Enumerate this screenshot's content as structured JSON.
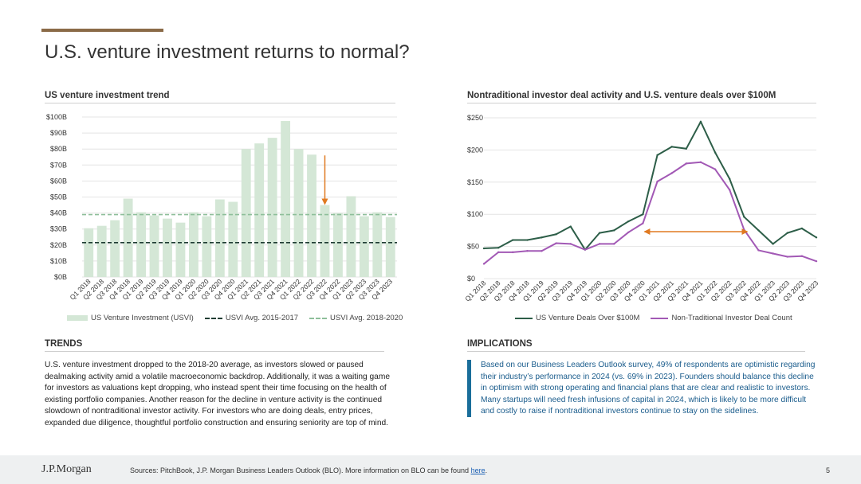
{
  "title": "U.S. venture investment returns to normal?",
  "left_chart_title": "US venture investment trend",
  "right_chart_title": "Nontraditional investor deal activity and U.S. venture deals over $100M",
  "trends_heading": "TRENDS",
  "trends_text": "U.S. venture investment dropped to the 2018-20 average, as investors slowed or paused dealmaking activity amid a volatile macroeconomic backdrop. Additionally, it was a waiting game for investors as valuations kept dropping, who instead spent their time focusing on the health of existing portfolio companies. Another reason for the decline in venture activity is the continued slowdown of nontraditional investor activity. For investors who are doing deals, entry prices, expanded due diligence, thoughtful portfolio construction and ensuring seniority are top of mind.",
  "implications_heading": "IMPLICATIONS",
  "implications_text": "Based on our Business Leaders Outlook survey, 49% of respondents are optimistic regarding their industry’s performance in 2024 (vs. 69% in 2023). Founders should balance this decline in optimism with strong operating and financial plans that are clear and realistic to investors. Many startups will need fresh infusions of capital in 2024, which is likely to be more difficult and costly to raise if nontraditional investors continue to stay on the sidelines.",
  "footer": {
    "logo": "J.P.Morgan",
    "sources": "Sources: PitchBook, J.P. Morgan Business Leaders Outlook (BLO). More information on BLO can be found ",
    "link": "here",
    "link_suffix": ".",
    "page_number": "5"
  },
  "chart_data": [
    {
      "type": "bar",
      "title": "US venture investment trend",
      "categories": [
        "Q1 2018",
        "Q2 2018",
        "Q3 2018",
        "Q4 2018",
        "Q1 2019",
        "Q2 2019",
        "Q3 2019",
        "Q4 2019",
        "Q1 2020",
        "Q2 2020",
        "Q3 2020",
        "Q4 2020",
        "Q1 2021",
        "Q2 2021",
        "Q3 2021",
        "Q4 2021",
        "Q1 2022",
        "Q2 2022",
        "Q3 2022",
        "Q4 2022",
        "Q1 2023",
        "Q2 2023",
        "Q3 2023",
        "Q4 2023"
      ],
      "series": [
        {
          "name": "US Venture Investment (USVI)",
          "values": [
            30.5,
            32,
            35.5,
            49,
            40.5,
            38.5,
            36.5,
            34,
            40.5,
            38,
            48.5,
            47,
            80,
            83.5,
            87,
            97.5,
            80,
            76.5,
            45,
            40,
            50.5,
            38,
            40.5,
            37.5
          ],
          "color": "#d4e7d6"
        }
      ],
      "reference_lines": [
        {
          "name": "USVI Avg. 2015-2017",
          "value": 21.5,
          "color": "#1f3d33",
          "style": "dashed"
        },
        {
          "name": "USVI Avg. 2018-2020",
          "value": 39,
          "color": "#8ebf9a",
          "style": "dashed"
        }
      ],
      "ylim": [
        0,
        100
      ],
      "yticks": [
        "$0B",
        "$10B",
        "$20B",
        "$30B",
        "$40B",
        "$50B",
        "$60B",
        "$70B",
        "$80B",
        "$90B",
        "$100B"
      ],
      "annotation": {
        "type": "arrow-down",
        "category": "Q3 2022",
        "from": 76,
        "to": 45,
        "color": "#e07a21"
      },
      "legend_position": "bottom"
    },
    {
      "type": "line",
      "title": "Nontraditional investor deal activity and U.S. venture deals over $100M",
      "categories": [
        "Q1 2018",
        "Q2 2018",
        "Q3 2018",
        "Q4 2018",
        "Q1 2019",
        "Q2 2019",
        "Q3 2019",
        "Q4 2019",
        "Q1 2020",
        "Q2 2020",
        "Q3 2020",
        "Q4 2020",
        "Q1 2021",
        "Q2 2021",
        "Q3 2021",
        "Q4 2021",
        "Q1 2022",
        "Q2 2022",
        "Q3 2022",
        "Q4 2022",
        "Q1 2023",
        "Q2 2023",
        "Q3 2023",
        "Q4 2023"
      ],
      "series": [
        {
          "name": "US Venture Deals Over $100M",
          "values": [
            47,
            48,
            60,
            60,
            64,
            69,
            81,
            45,
            71,
            75,
            89,
            100,
            192,
            205,
            202,
            244,
            196,
            155,
            96,
            75,
            54,
            71,
            78,
            64
          ],
          "color": "#2d5e48"
        },
        {
          "name": "Non-Traditional Investor Deal Count",
          "values": [
            23,
            41,
            41,
            43,
            43,
            55,
            54,
            45,
            54,
            54,
            72,
            86,
            151,
            164,
            179,
            181,
            170,
            138,
            76,
            44,
            39,
            34,
            35,
            27
          ],
          "color": "#a259b5"
        }
      ],
      "ylim": [
        0,
        250
      ],
      "yticks": [
        "$0",
        "$50",
        "$100",
        "$150",
        "$200",
        "$250"
      ],
      "annotation": {
        "type": "arrow-double",
        "from_category": "Q4 2020",
        "to_category": "Q3 2022",
        "value": 73,
        "color": "#e07a21"
      },
      "legend_position": "bottom"
    }
  ]
}
